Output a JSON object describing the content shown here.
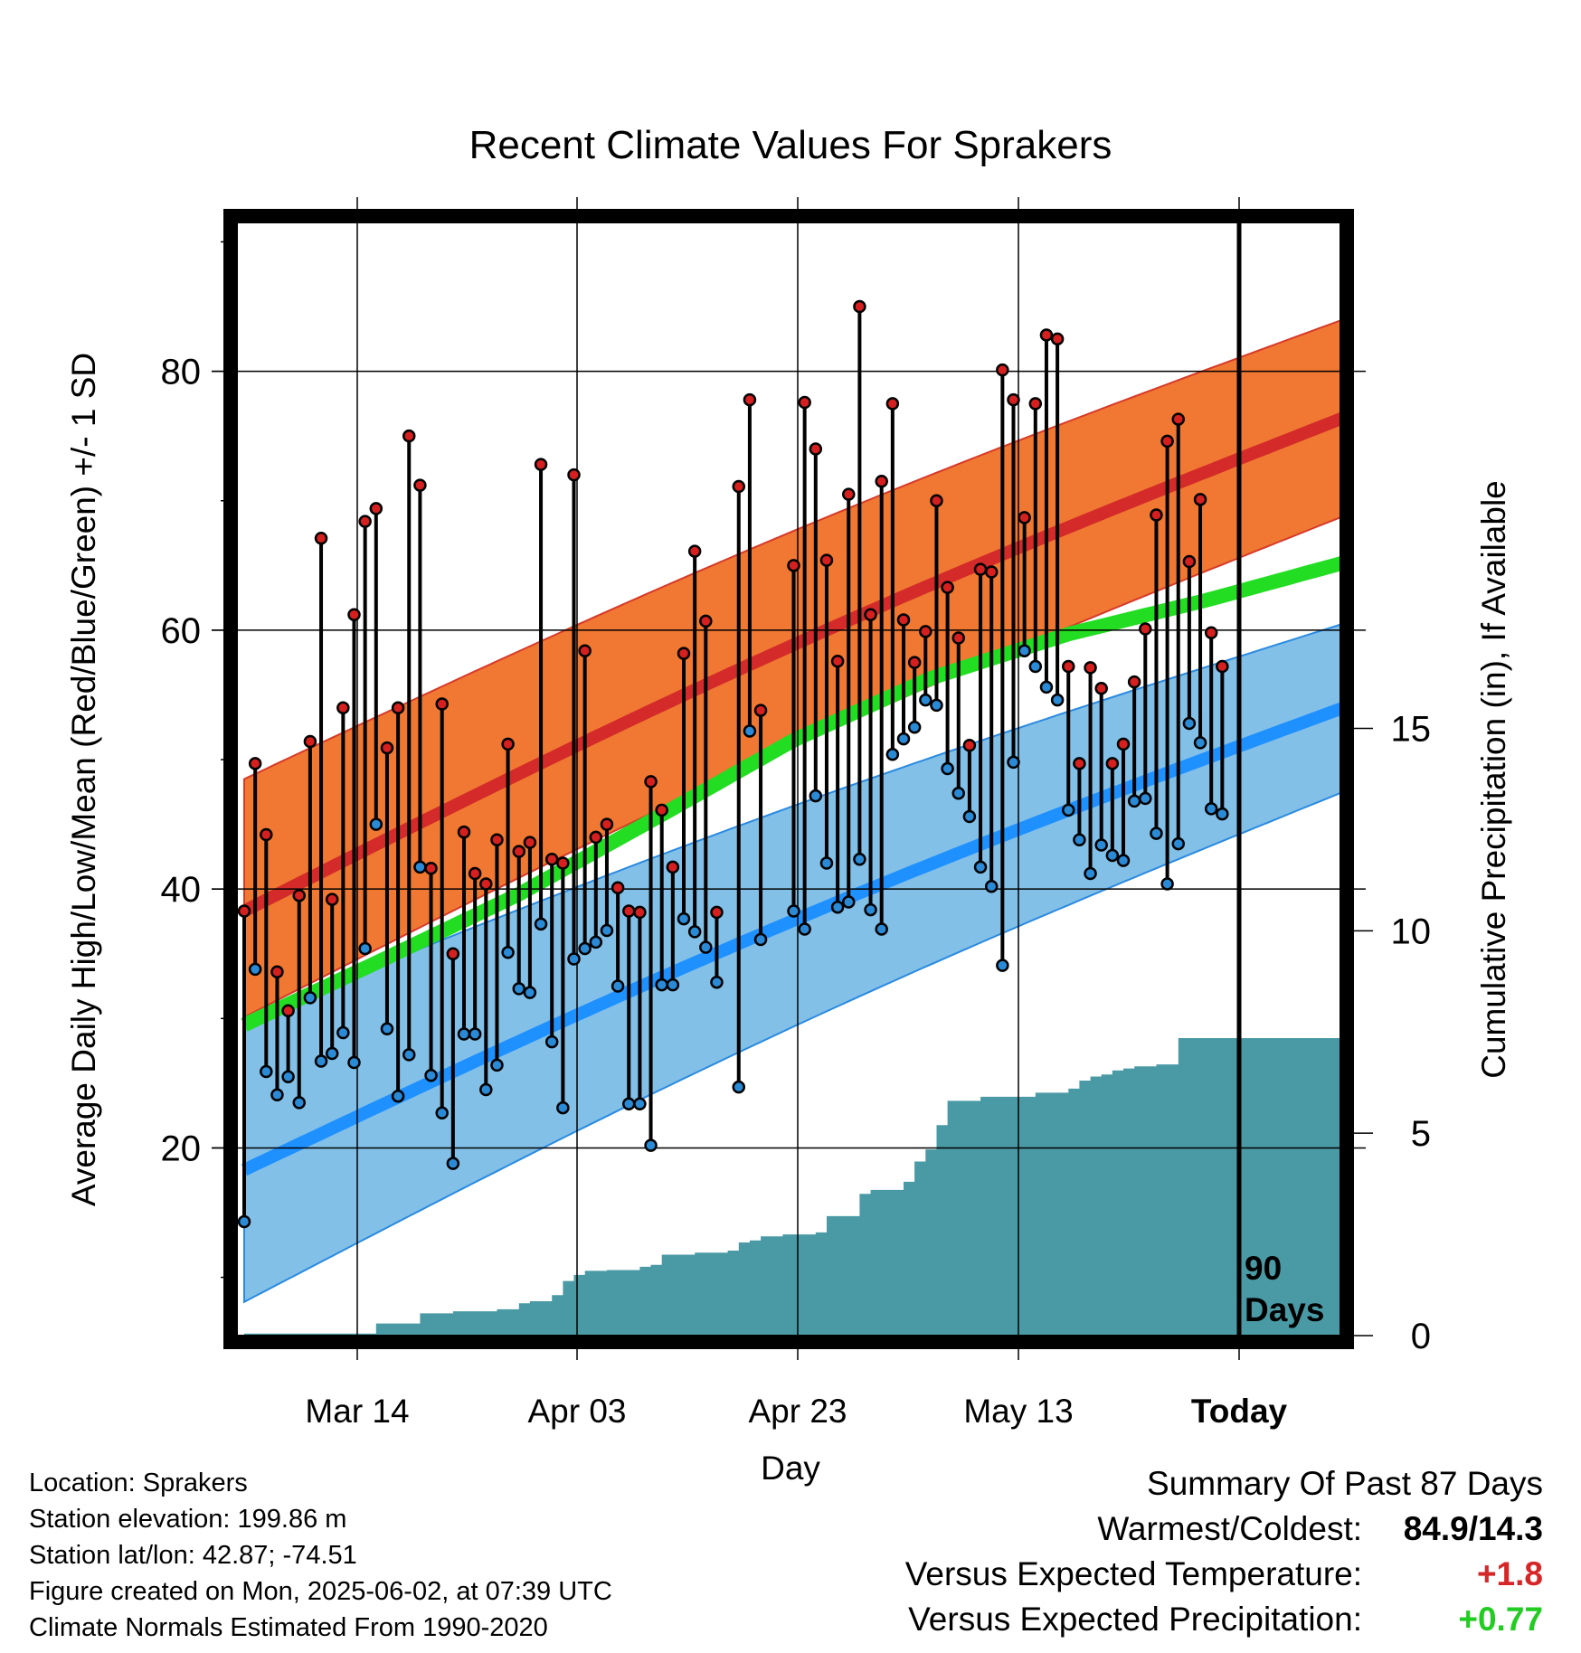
{
  "chart_data": {
    "type": "line",
    "title": "Recent Climate Values For Sprakers",
    "xlabel": "Day",
    "ylabel": "Average Daily High/Low/Mean (Red/Blue/Green) +/- 1 SD",
    "y2label": "Cumulative Precipitation (in), If Available",
    "x_ticks": [
      "Mar 14",
      "Apr 03",
      "Apr 23",
      "May 13",
      "Today"
    ],
    "ylim": [
      5.5,
      91.5
    ],
    "y_ticks": [
      20,
      40,
      60,
      80
    ],
    "y2lim": [
      0,
      27.5
    ],
    "y2_ticks": [
      0,
      5,
      10,
      15
    ],
    "window_label": "90 Days",
    "grid": true,
    "series": [
      {
        "name": "High",
        "color": "#cc2222",
        "values": [
          38.3,
          49.7,
          44.2,
          33.6,
          30.6,
          39.5,
          51.4,
          67.1,
          39.2,
          54,
          61.2,
          68.4,
          69.4,
          50.9,
          54,
          75,
          71.2,
          41.6,
          54.3,
          35,
          44.4,
          41.2,
          40.4,
          43.8,
          51.2,
          42.9,
          43.6,
          72.8,
          42.3,
          42,
          72,
          58.4,
          44,
          45,
          40.1,
          38.3,
          38.2,
          48.3,
          46.1,
          41.7,
          58.2,
          66.1,
          60.7,
          38.2,
          null,
          71.1,
          77.8,
          53.8,
          null,
          null,
          65,
          77.6,
          74,
          65.4,
          57.6,
          70.5,
          85,
          61.2,
          71.5,
          77.5,
          60.8,
          57.5,
          59.9,
          70,
          63.3,
          59.4,
          51.1,
          64.7,
          64.5,
          80.1,
          77.8,
          68.7,
          77.5,
          82.8,
          82.5,
          57.2,
          49.7,
          57.1,
          55.5,
          49.7,
          51.2,
          56,
          60.1,
          68.9,
          74.6,
          76.3,
          65.3,
          70.1,
          59.8,
          57.2
        ]
      },
      {
        "name": "Low",
        "color": "#2a8ad6",
        "values": [
          14.3,
          33.8,
          25.9,
          24.1,
          25.5,
          23.5,
          31.6,
          26.7,
          27.3,
          28.9,
          26.6,
          35.4,
          45,
          29.2,
          24,
          27.2,
          41.7,
          25.6,
          22.7,
          18.8,
          28.8,
          28.8,
          24.5,
          26.4,
          35.1,
          32.3,
          32,
          37.3,
          28.2,
          23.1,
          34.6,
          35.4,
          35.9,
          36.8,
          32.5,
          23.4,
          23.4,
          20.2,
          32.6,
          32.6,
          37.7,
          36.7,
          35.5,
          32.8,
          null,
          24.7,
          52.2,
          36.1,
          null,
          null,
          38.3,
          36.9,
          47.2,
          42,
          38.6,
          39,
          42.3,
          38.4,
          36.9,
          50.4,
          51.6,
          52.5,
          54.6,
          54.2,
          49.3,
          47.4,
          45.6,
          41.7,
          40.2,
          34.1,
          49.8,
          58.4,
          57.2,
          55.6,
          54.6,
          46.1,
          43.8,
          41.2,
          43.4,
          42.6,
          42.2,
          46.8,
          47,
          44.3,
          40.4,
          43.5,
          52.8,
          51.3,
          46.2,
          45.8
        ]
      },
      {
        "name": "Mean",
        "color": "#22dd22",
        "values": [
          29.5,
          34.5,
          39.6,
          45.5,
          51.5,
          56.3,
          59.7,
          62.3,
          65.2
        ]
      },
      {
        "name": "Cumulative Precipitation",
        "color": "#4a9aa5",
        "values": [
          0.05,
          0.05,
          0.05,
          0.05,
          0.05,
          0.05,
          0.05,
          0.05,
          0.05,
          0.05,
          0.05,
          0.05,
          0.3,
          0.3,
          0.3,
          0.3,
          0.55,
          0.55,
          0.55,
          0.6,
          0.6,
          0.6,
          0.6,
          0.65,
          0.65,
          0.8,
          0.85,
          0.85,
          1.0,
          1.35,
          1.5,
          1.6,
          1.6,
          1.62,
          1.62,
          1.62,
          1.7,
          1.75,
          2.0,
          2.0,
          2.0,
          2.05,
          2.05,
          2.05,
          2.1,
          2.3,
          2.35,
          2.45,
          2.45,
          2.5,
          2.5,
          2.5,
          2.55,
          2.95,
          2.95,
          2.95,
          3.5,
          3.6,
          3.6,
          3.6,
          3.8,
          4.3,
          4.6,
          5.2,
          5.8,
          5.8,
          5.8,
          5.9,
          5.9,
          5.9,
          5.9,
          5.9,
          6.0,
          6.0,
          6.0,
          6.1,
          6.3,
          6.4,
          6.45,
          6.55,
          6.6,
          6.65,
          6.65,
          6.7,
          6.7,
          7.35,
          7.35,
          7.35,
          7.35,
          7.35
        ]
      }
    ],
    "normal_bands": {
      "high_upper_start": 48.5,
      "high_upper_end": 84,
      "high_mean_start": 38.3,
      "high_mean_end": 76.4,
      "high_lower_start": 30.1,
      "high_lower_end": 68.8,
      "low_upper_start": 29.9,
      "low_upper_end": 60.5,
      "low_mean_start": 18.3,
      "low_mean_end": 54,
      "low_lower_start": 8.1,
      "low_lower_end": 47.5
    }
  },
  "info": {
    "location": "Location: Sprakers",
    "elevation": "Station elevation: 199.86 m",
    "latlon": "Station lat/lon: 42.87; -74.51",
    "created": "Figure created on Mon, 2025-06-02, at 07:39 UTC",
    "normals": "Climate Normals Estimated From 1990-2020"
  },
  "summary": {
    "title": "Summary Of Past 87 Days",
    "warmest_label": "Warmest/Coldest:",
    "warmest_value": "84.9/14.3",
    "temp_label": "Versus Expected Temperature:",
    "temp_value": "+1.8",
    "precip_label": "Versus Expected Precipitation:",
    "precip_value": "+0.77"
  }
}
